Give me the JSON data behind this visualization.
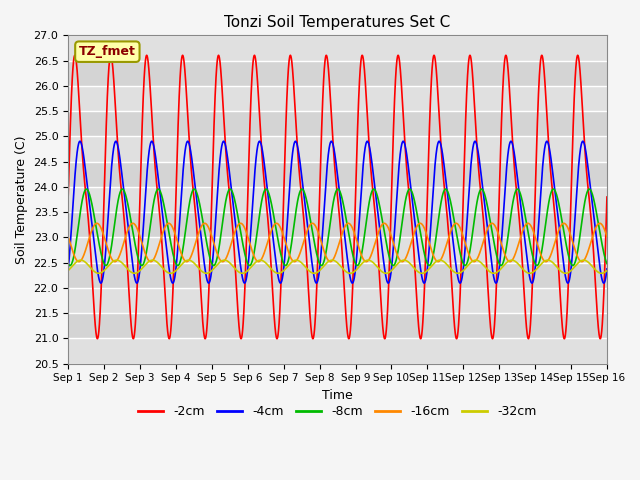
{
  "title": "Tonzi Soil Temperatures Set C",
  "xlabel": "Time",
  "ylabel": "Soil Temperature (C)",
  "ylim": [
    20.5,
    27.0
  ],
  "xlim": [
    0,
    15
  ],
  "x_tick_labels": [
    "Sep 1",
    "Sep 2",
    "Sep 3",
    "Sep 4",
    "Sep 5",
    "Sep 6",
    "Sep 7",
    "Sep 8",
    "Sep 9",
    "Sep 10",
    "Sep 11",
    "Sep 12",
    "Sep 13",
    "Sep 14",
    "Sep 15",
    "Sep 16"
  ],
  "series": [
    {
      "label": "-2cm",
      "color": "#ff0000",
      "mean": 23.8,
      "amplitude": 2.5,
      "amplitude2": 0.7,
      "phase": 0.0,
      "phase2": 0.0
    },
    {
      "label": "-4cm",
      "color": "#0000ff",
      "mean": 23.5,
      "amplitude": 1.35,
      "amplitude2": 0.2,
      "phase": 0.12,
      "phase2": 0.12
    },
    {
      "label": "-8cm",
      "color": "#00bb00",
      "mean": 23.2,
      "amplitude": 0.75,
      "amplitude2": 0.05,
      "phase": 0.28,
      "phase2": 0.28
    },
    {
      "label": "-16cm",
      "color": "#ff8800",
      "mean": 22.9,
      "amplitude": 0.38,
      "amplitude2": 0.0,
      "phase": 0.55,
      "phase2": 0.55
    },
    {
      "label": "-32cm",
      "color": "#cccc00",
      "mean": 22.42,
      "amplitude": 0.13,
      "amplitude2": 0.0,
      "phase": 1.1,
      "phase2": 1.1
    }
  ],
  "legend_label": "TZ_fmet",
  "legend_box_facecolor": "#ffffaa",
  "legend_box_edgecolor": "#999900",
  "plot_bg": "#e0e0e0",
  "fig_bg": "#f5f5f5",
  "grid_color": "#ffffff",
  "yticks": [
    20.5,
    21.0,
    21.5,
    22.0,
    22.5,
    23.0,
    23.5,
    24.0,
    24.5,
    25.0,
    25.5,
    26.0,
    26.5,
    27.0
  ],
  "linewidth": 1.2
}
